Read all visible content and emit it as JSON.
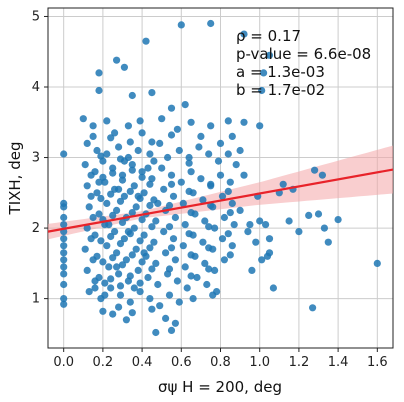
{
  "chart_data": {
    "type": "scatter",
    "xlabel": "σψ H = 200, deg",
    "ylabel": "TIXH, deg",
    "xlim": [
      -0.08,
      1.68
    ],
    "ylim": [
      0.3,
      5.12
    ],
    "xticks": [
      "0.0",
      "0.2",
      "0.4",
      "0.6",
      "0.8",
      "1.0",
      "1.2",
      "1.4",
      "1.6"
    ],
    "yticks": [
      "1",
      "2",
      "3",
      "4",
      "5"
    ],
    "grid": true,
    "annotations": [
      "ρ = 0.17",
      "p-value = 6.6e-08",
      "a = 1.3e-03",
      "b = 1.7e-02"
    ],
    "colors": {
      "points": "#1f77b4",
      "fit_line": "#e8232a",
      "confidence_band": "#f4a6a8",
      "grid": "#cccccc"
    },
    "fit": {
      "x": [
        -0.08,
        1.68
      ],
      "y": [
        1.95,
        2.83
      ],
      "band_halfwidth_at_x": [
        [
          -0.08,
          0.11
        ],
        [
          0.4,
          0.05
        ],
        [
          1.0,
          0.16
        ],
        [
          1.68,
          0.34
        ]
      ]
    },
    "series": [
      {
        "values": [
          [
            0.0,
            3.05
          ],
          [
            0.0,
            2.35
          ],
          [
            0.0,
            2.3
          ],
          [
            0.0,
            2.15
          ],
          [
            0.0,
            2.05
          ],
          [
            0.0,
            1.95
          ],
          [
            0.0,
            1.85
          ],
          [
            0.0,
            1.75
          ],
          [
            0.0,
            1.65
          ],
          [
            0.0,
            1.55
          ],
          [
            0.0,
            1.45
          ],
          [
            0.0,
            1.35
          ],
          [
            0.0,
            1.2
          ],
          [
            0.0,
            1.0
          ],
          [
            0.0,
            0.92
          ],
          [
            1.6,
            1.5
          ],
          [
            1.4,
            2.12
          ],
          [
            1.27,
            0.87
          ],
          [
            1.28,
            2.82
          ],
          [
            1.32,
            2.75
          ],
          [
            1.33,
            2.0
          ],
          [
            1.3,
            2.2
          ],
          [
            1.12,
            2.62
          ],
          [
            1.1,
            2.5
          ],
          [
            1.05,
            1.85
          ],
          [
            1.03,
            2.05
          ],
          [
            1.05,
            1.65
          ],
          [
            1.07,
            1.15
          ],
          [
            1.04,
            1.6
          ],
          [
            1.17,
            2.55
          ],
          [
            1.15,
            2.1
          ],
          [
            1.2,
            1.95
          ],
          [
            1.25,
            2.18
          ],
          [
            1.35,
            1.8
          ],
          [
            0.99,
            2.45
          ],
          [
            1.0,
            2.1
          ],
          [
            0.98,
            1.8
          ],
          [
            1.01,
            1.55
          ],
          [
            0.96,
            1.4
          ],
          [
            0.95,
            2.05
          ],
          [
            0.94,
            1.95
          ],
          [
            1.0,
            3.45
          ],
          [
            1.01,
            3.95
          ],
          [
            1.05,
            4.45
          ],
          [
            1.02,
            4.2
          ],
          [
            0.92,
            3.5
          ],
          [
            0.75,
            4.9
          ],
          [
            0.6,
            4.88
          ],
          [
            0.42,
            4.65
          ],
          [
            0.27,
            4.38
          ],
          [
            0.31,
            4.28
          ],
          [
            0.18,
            4.2
          ],
          [
            0.92,
            4.75
          ],
          [
            0.18,
            3.95
          ],
          [
            0.35,
            3.88
          ],
          [
            0.45,
            3.92
          ],
          [
            0.62,
            3.75
          ],
          [
            0.55,
            3.7
          ],
          [
            0.1,
            3.55
          ],
          [
            0.15,
            3.45
          ],
          [
            0.22,
            3.52
          ],
          [
            0.26,
            3.35
          ],
          [
            0.33,
            3.45
          ],
          [
            0.4,
            3.35
          ],
          [
            0.5,
            3.55
          ],
          [
            0.58,
            3.4
          ],
          [
            0.65,
            3.5
          ],
          [
            0.7,
            3.3
          ],
          [
            0.75,
            3.45
          ],
          [
            0.8,
            3.2
          ],
          [
            0.86,
            3.3
          ],
          [
            0.12,
            3.2
          ],
          [
            0.17,
            3.1
          ],
          [
            0.22,
            3.05
          ],
          [
            0.28,
            3.15
          ],
          [
            0.33,
            3.0
          ],
          [
            0.38,
            3.1
          ],
          [
            0.44,
            3.05
          ],
          [
            0.49,
            3.2
          ],
          [
            0.53,
            3.0
          ],
          [
            0.59,
            3.1
          ],
          [
            0.64,
            3.0
          ],
          [
            0.69,
            3.15
          ],
          [
            0.74,
            3.05
          ],
          [
            0.79,
            2.95
          ],
          [
            0.84,
            3.05
          ],
          [
            0.88,
            2.9
          ],
          [
            0.9,
            3.1
          ],
          [
            0.11,
            2.9
          ],
          [
            0.16,
            2.8
          ],
          [
            0.2,
            2.95
          ],
          [
            0.25,
            2.85
          ],
          [
            0.3,
            2.75
          ],
          [
            0.35,
            2.9
          ],
          [
            0.4,
            2.8
          ],
          [
            0.45,
            2.7
          ],
          [
            0.5,
            2.85
          ],
          [
            0.55,
            2.75
          ],
          [
            0.6,
            2.65
          ],
          [
            0.65,
            2.8
          ],
          [
            0.7,
            2.7
          ],
          [
            0.75,
            2.6
          ],
          [
            0.8,
            2.75
          ],
          [
            0.85,
            2.65
          ],
          [
            0.92,
            2.75
          ],
          [
            0.12,
            2.6
          ],
          [
            0.17,
            2.5
          ],
          [
            0.21,
            2.65
          ],
          [
            0.26,
            2.55
          ],
          [
            0.31,
            2.45
          ],
          [
            0.36,
            2.6
          ],
          [
            0.41,
            2.5
          ],
          [
            0.46,
            2.4
          ],
          [
            0.51,
            2.55
          ],
          [
            0.56,
            2.45
          ],
          [
            0.61,
            2.35
          ],
          [
            0.66,
            2.5
          ],
          [
            0.71,
            2.4
          ],
          [
            0.76,
            2.3
          ],
          [
            0.81,
            2.45
          ],
          [
            0.86,
            2.35
          ],
          [
            0.9,
            2.25
          ],
          [
            0.13,
            2.3
          ],
          [
            0.18,
            2.2
          ],
          [
            0.22,
            2.35
          ],
          [
            0.27,
            2.25
          ],
          [
            0.32,
            2.15
          ],
          [
            0.37,
            2.3
          ],
          [
            0.42,
            2.2
          ],
          [
            0.47,
            2.1
          ],
          [
            0.52,
            2.25
          ],
          [
            0.57,
            2.15
          ],
          [
            0.62,
            2.05
          ],
          [
            0.67,
            2.2
          ],
          [
            0.72,
            2.1
          ],
          [
            0.77,
            2.0
          ],
          [
            0.82,
            2.15
          ],
          [
            0.87,
            2.05
          ],
          [
            0.12,
            2.0
          ],
          [
            0.16,
            1.9
          ],
          [
            0.21,
            2.05
          ],
          [
            0.26,
            1.95
          ],
          [
            0.31,
            1.85
          ],
          [
            0.36,
            2.0
          ],
          [
            0.41,
            1.9
          ],
          [
            0.46,
            1.8
          ],
          [
            0.51,
            1.95
          ],
          [
            0.56,
            1.85
          ],
          [
            0.61,
            1.75
          ],
          [
            0.66,
            1.9
          ],
          [
            0.71,
            1.8
          ],
          [
            0.76,
            1.7
          ],
          [
            0.81,
            1.85
          ],
          [
            0.86,
            1.75
          ],
          [
            0.11,
            1.7
          ],
          [
            0.17,
            1.6
          ],
          [
            0.22,
            1.75
          ],
          [
            0.27,
            1.65
          ],
          [
            0.32,
            1.55
          ],
          [
            0.37,
            1.7
          ],
          [
            0.42,
            1.6
          ],
          [
            0.47,
            1.5
          ],
          [
            0.52,
            1.65
          ],
          [
            0.57,
            1.55
          ],
          [
            0.62,
            1.45
          ],
          [
            0.67,
            1.6
          ],
          [
            0.72,
            1.5
          ],
          [
            0.77,
            1.4
          ],
          [
            0.82,
            1.55
          ],
          [
            0.12,
            1.4
          ],
          [
            0.18,
            1.3
          ],
          [
            0.23,
            1.45
          ],
          [
            0.28,
            1.35
          ],
          [
            0.33,
            1.25
          ],
          [
            0.38,
            1.4
          ],
          [
            0.43,
            1.3
          ],
          [
            0.48,
            1.2
          ],
          [
            0.53,
            1.35
          ],
          [
            0.58,
            1.25
          ],
          [
            0.63,
            1.15
          ],
          [
            0.68,
            1.3
          ],
          [
            0.73,
            1.2
          ],
          [
            0.78,
            1.1
          ],
          [
            0.13,
            1.1
          ],
          [
            0.19,
            1.0
          ],
          [
            0.24,
            1.15
          ],
          [
            0.29,
            1.05
          ],
          [
            0.34,
            0.95
          ],
          [
            0.39,
            1.1
          ],
          [
            0.44,
            1.0
          ],
          [
            0.49,
            0.9
          ],
          [
            0.54,
            1.05
          ],
          [
            0.59,
            0.95
          ],
          [
            0.66,
            1.0
          ],
          [
            0.76,
            1.05
          ],
          [
            0.2,
            0.82
          ],
          [
            0.28,
            0.88
          ],
          [
            0.35,
            0.8
          ],
          [
            0.45,
            0.85
          ],
          [
            0.52,
            0.72
          ],
          [
            0.57,
            0.65
          ],
          [
            0.47,
            0.52
          ],
          [
            0.55,
            0.55
          ],
          [
            0.32,
            0.7
          ],
          [
            0.25,
            0.78
          ],
          [
            0.14,
            2.45
          ],
          [
            0.15,
            2.15
          ],
          [
            0.14,
            1.85
          ],
          [
            0.15,
            1.55
          ],
          [
            0.16,
            1.25
          ],
          [
            0.14,
            2.75
          ],
          [
            0.15,
            3.3
          ],
          [
            0.19,
            2.42
          ],
          [
            0.2,
            2.12
          ],
          [
            0.19,
            1.82
          ],
          [
            0.2,
            1.52
          ],
          [
            0.21,
            1.22
          ],
          [
            0.2,
            2.72
          ],
          [
            0.19,
            3.02
          ],
          [
            0.24,
            2.48
          ],
          [
            0.25,
            2.18
          ],
          [
            0.24,
            1.88
          ],
          [
            0.25,
            1.58
          ],
          [
            0.24,
            1.28
          ],
          [
            0.25,
            2.78
          ],
          [
            0.24,
            3.28
          ],
          [
            0.29,
            2.38
          ],
          [
            0.3,
            2.08
          ],
          [
            0.29,
            1.78
          ],
          [
            0.3,
            1.48
          ],
          [
            0.29,
            1.18
          ],
          [
            0.3,
            2.68
          ],
          [
            0.29,
            2.98
          ],
          [
            0.34,
            2.52
          ],
          [
            0.35,
            2.22
          ],
          [
            0.34,
            1.92
          ],
          [
            0.35,
            1.62
          ],
          [
            0.34,
            1.32
          ],
          [
            0.35,
            2.82
          ],
          [
            0.34,
            3.22
          ],
          [
            0.39,
            2.42
          ],
          [
            0.4,
            2.12
          ],
          [
            0.39,
            1.82
          ],
          [
            0.4,
            1.52
          ],
          [
            0.39,
            1.22
          ],
          [
            0.4,
            2.72
          ],
          [
            0.39,
            3.52
          ],
          [
            0.44,
            2.32
          ],
          [
            0.45,
            2.02
          ],
          [
            0.44,
            1.72
          ],
          [
            0.45,
            1.42
          ],
          [
            0.44,
            2.62
          ],
          [
            0.45,
            3.22
          ],
          [
            0.54,
            2.02
          ],
          [
            0.55,
            1.72
          ],
          [
            0.54,
            2.32
          ],
          [
            0.55,
            2.62
          ],
          [
            0.54,
            1.42
          ],
          [
            0.55,
            3.32
          ],
          [
            0.64,
            1.92
          ],
          [
            0.65,
            2.22
          ],
          [
            0.64,
            2.52
          ],
          [
            0.65,
            1.62
          ],
          [
            0.64,
            2.92
          ],
          [
            0.65,
            1.32
          ],
          [
            0.74,
            2.02
          ],
          [
            0.75,
            2.32
          ],
          [
            0.74,
            1.72
          ],
          [
            0.75,
            2.62
          ],
          [
            0.74,
            1.42
          ],
          [
            0.84,
            1.92
          ],
          [
            0.85,
            2.22
          ],
          [
            0.84,
            2.52
          ],
          [
            0.85,
            1.62
          ],
          [
            0.84,
            3.52
          ],
          [
            0.18,
            2.65
          ],
          [
            0.23,
            2.05
          ],
          [
            0.28,
            2.55
          ],
          [
            0.33,
            1.95
          ],
          [
            0.38,
            2.45
          ],
          [
            0.43,
            2.85
          ],
          [
            0.48,
            2.35
          ],
          [
            0.27,
            1.45
          ],
          [
            0.31,
            2.95
          ],
          [
            0.36,
            1.15
          ],
          [
            0.41,
            1.65
          ],
          [
            0.46,
            2.95
          ],
          [
            0.21,
            1.05
          ],
          [
            0.16,
            1.15
          ]
        ]
      }
    ]
  }
}
